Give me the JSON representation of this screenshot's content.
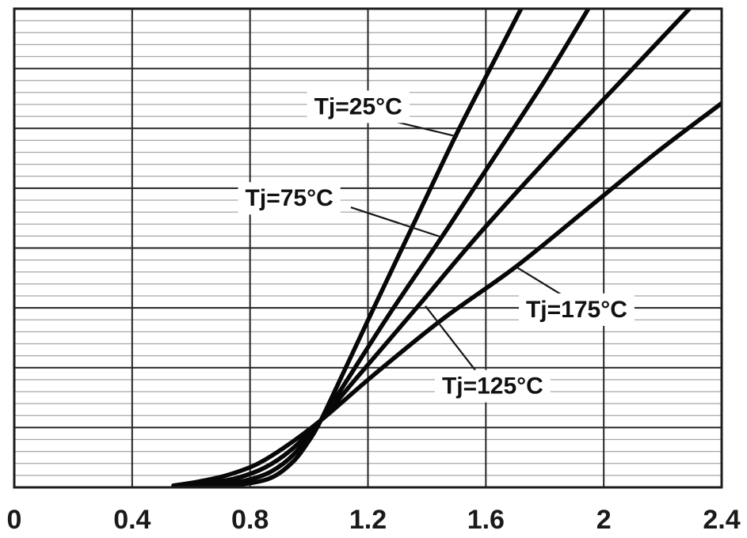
{
  "chart_data": {
    "type": "line",
    "title": "",
    "xlabel": "",
    "ylabel": "",
    "x_units": "axis labeled 0 to 2.4 (volts, typical Vce/Vf curve)",
    "y_units": "unlabeled grid rows (0 = bottom axis, 8 = top border)",
    "xlim": [
      0,
      2.4
    ],
    "ylim_rows": [
      0,
      8
    ],
    "x_tick_values": [
      0,
      0.4,
      0.8,
      1.2,
      1.6,
      2,
      2.4
    ],
    "x_tick_labels": [
      "0",
      "0.4",
      "0.8",
      "1.2",
      "1.6",
      "2",
      "2.4"
    ],
    "y_axis": {
      "tick_labels_visible": false,
      "major_divisions": 8,
      "minor_per_major": 5
    },
    "grid": {
      "vertical_minor_lines": false,
      "horizontal_minor_lines": true
    },
    "legend_position": "inline curve callouts",
    "series": [
      {
        "name": "Tj=25°C",
        "points": [
          [
            0.6,
            0.02
          ],
          [
            0.72,
            0.04
          ],
          [
            0.8,
            0.07
          ],
          [
            0.88,
            0.18
          ],
          [
            0.95,
            0.45
          ],
          [
            1.0,
            0.78
          ],
          [
            1.04,
            1.12
          ],
          [
            1.12,
            1.95
          ],
          [
            1.22,
            3.0
          ],
          [
            1.35,
            4.35
          ],
          [
            1.5,
            5.9
          ],
          [
            1.62,
            7.05
          ],
          [
            1.73,
            8.1
          ]
        ]
      },
      {
        "name": "Tj=75°C",
        "points": [
          [
            0.57,
            0.02
          ],
          [
            0.68,
            0.05
          ],
          [
            0.78,
            0.11
          ],
          [
            0.87,
            0.26
          ],
          [
            0.95,
            0.56
          ],
          [
            1.04,
            1.12
          ],
          [
            1.13,
            1.8
          ],
          [
            1.28,
            2.95
          ],
          [
            1.45,
            4.18
          ],
          [
            1.62,
            5.45
          ],
          [
            1.8,
            6.8
          ],
          [
            1.96,
            8.1
          ]
        ]
      },
      {
        "name": "Tj=125°C",
        "points": [
          [
            0.55,
            0.02
          ],
          [
            0.65,
            0.07
          ],
          [
            0.75,
            0.15
          ],
          [
            0.85,
            0.33
          ],
          [
            0.94,
            0.63
          ],
          [
            1.04,
            1.12
          ],
          [
            1.16,
            1.82
          ],
          [
            1.37,
            3.03
          ],
          [
            1.58,
            4.25
          ],
          [
            1.82,
            5.55
          ],
          [
            2.07,
            6.85
          ],
          [
            2.31,
            8.1
          ]
        ]
      },
      {
        "name": "Tj=175°C",
        "points": [
          [
            0.54,
            0.03
          ],
          [
            0.63,
            0.1
          ],
          [
            0.72,
            0.2
          ],
          [
            0.82,
            0.38
          ],
          [
            0.92,
            0.68
          ],
          [
            1.04,
            1.12
          ],
          [
            1.22,
            1.88
          ],
          [
            1.45,
            2.8
          ],
          [
            1.7,
            3.68
          ],
          [
            1.95,
            4.68
          ],
          [
            2.18,
            5.6
          ],
          [
            2.4,
            6.42
          ]
        ]
      }
    ],
    "annotations": [
      {
        "text": "Tj=25°C",
        "anchor": [
          1.167,
          6.34
        ],
        "leader": [
          [
            1.269,
            6.14
          ],
          [
            1.505,
            5.86
          ]
        ]
      },
      {
        "text": "Tj=75°C",
        "anchor": [
          0.933,
          4.81
        ],
        "leader": [
          [
            1.142,
            4.68
          ],
          [
            1.451,
            4.18
          ]
        ]
      },
      {
        "text": "Tj=125°C",
        "anchor": [
          1.623,
          1.67
        ],
        "leader": [
          [
            1.564,
            1.96
          ],
          [
            1.395,
            3.03
          ]
        ]
      },
      {
        "text": "Tj=175°C",
        "anchor": [
          1.908,
          2.95
        ],
        "leader": [
          [
            1.86,
            3.21
          ],
          [
            1.704,
            3.68
          ]
        ]
      }
    ],
    "colors": {
      "background": "#ffffff",
      "curve": "#070707",
      "grid_major": "#262626",
      "grid_minor": "#a6a6a6",
      "plot_border": "#1c1c1c",
      "tick_text": "#1a1a1a",
      "label_text": "#111111",
      "label_box": "#ffffff",
      "leader_line": "#161616"
    }
  }
}
